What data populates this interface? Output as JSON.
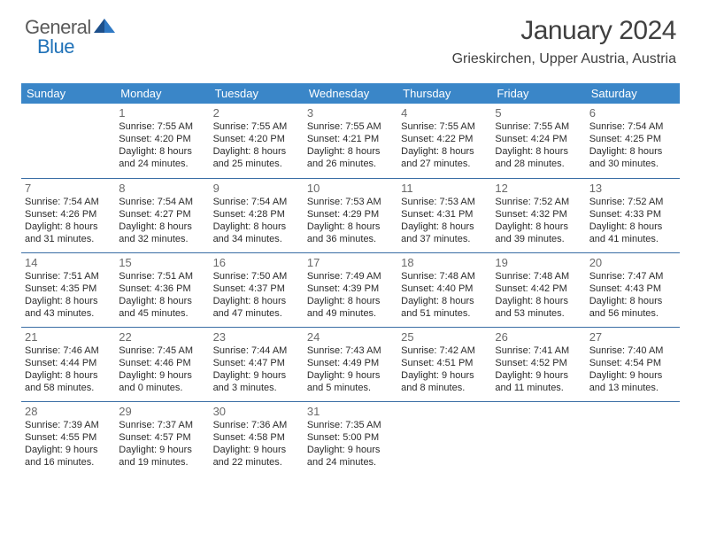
{
  "brand": {
    "line1": "General",
    "line2": "Blue",
    "text_color": "#5a5a5a",
    "accent_color": "#2072b8"
  },
  "header": {
    "title": "January 2024",
    "location": "Grieskirchen, Upper Austria, Austria"
  },
  "theme": {
    "header_bg": "#3a86c8",
    "header_fg": "#ffffff",
    "row_border": "#3a6ea5",
    "daynum_color": "#6a6a6a",
    "text_color": "#2b2b2b",
    "page_bg": "#ffffff"
  },
  "calendar": {
    "type": "table",
    "columns": [
      "Sunday",
      "Monday",
      "Tuesday",
      "Wednesday",
      "Thursday",
      "Friday",
      "Saturday"
    ],
    "first_weekday_index": 1,
    "days": [
      {
        "n": 1,
        "sunrise": "7:55 AM",
        "sunset": "4:20 PM",
        "day_h": 8,
        "day_m": 24
      },
      {
        "n": 2,
        "sunrise": "7:55 AM",
        "sunset": "4:20 PM",
        "day_h": 8,
        "day_m": 25
      },
      {
        "n": 3,
        "sunrise": "7:55 AM",
        "sunset": "4:21 PM",
        "day_h": 8,
        "day_m": 26
      },
      {
        "n": 4,
        "sunrise": "7:55 AM",
        "sunset": "4:22 PM",
        "day_h": 8,
        "day_m": 27
      },
      {
        "n": 5,
        "sunrise": "7:55 AM",
        "sunset": "4:24 PM",
        "day_h": 8,
        "day_m": 28
      },
      {
        "n": 6,
        "sunrise": "7:54 AM",
        "sunset": "4:25 PM",
        "day_h": 8,
        "day_m": 30
      },
      {
        "n": 7,
        "sunrise": "7:54 AM",
        "sunset": "4:26 PM",
        "day_h": 8,
        "day_m": 31
      },
      {
        "n": 8,
        "sunrise": "7:54 AM",
        "sunset": "4:27 PM",
        "day_h": 8,
        "day_m": 32
      },
      {
        "n": 9,
        "sunrise": "7:54 AM",
        "sunset": "4:28 PM",
        "day_h": 8,
        "day_m": 34
      },
      {
        "n": 10,
        "sunrise": "7:53 AM",
        "sunset": "4:29 PM",
        "day_h": 8,
        "day_m": 36
      },
      {
        "n": 11,
        "sunrise": "7:53 AM",
        "sunset": "4:31 PM",
        "day_h": 8,
        "day_m": 37
      },
      {
        "n": 12,
        "sunrise": "7:52 AM",
        "sunset": "4:32 PM",
        "day_h": 8,
        "day_m": 39
      },
      {
        "n": 13,
        "sunrise": "7:52 AM",
        "sunset": "4:33 PM",
        "day_h": 8,
        "day_m": 41
      },
      {
        "n": 14,
        "sunrise": "7:51 AM",
        "sunset": "4:35 PM",
        "day_h": 8,
        "day_m": 43
      },
      {
        "n": 15,
        "sunrise": "7:51 AM",
        "sunset": "4:36 PM",
        "day_h": 8,
        "day_m": 45
      },
      {
        "n": 16,
        "sunrise": "7:50 AM",
        "sunset": "4:37 PM",
        "day_h": 8,
        "day_m": 47
      },
      {
        "n": 17,
        "sunrise": "7:49 AM",
        "sunset": "4:39 PM",
        "day_h": 8,
        "day_m": 49
      },
      {
        "n": 18,
        "sunrise": "7:48 AM",
        "sunset": "4:40 PM",
        "day_h": 8,
        "day_m": 51
      },
      {
        "n": 19,
        "sunrise": "7:48 AM",
        "sunset": "4:42 PM",
        "day_h": 8,
        "day_m": 53
      },
      {
        "n": 20,
        "sunrise": "7:47 AM",
        "sunset": "4:43 PM",
        "day_h": 8,
        "day_m": 56
      },
      {
        "n": 21,
        "sunrise": "7:46 AM",
        "sunset": "4:44 PM",
        "day_h": 8,
        "day_m": 58
      },
      {
        "n": 22,
        "sunrise": "7:45 AM",
        "sunset": "4:46 PM",
        "day_h": 9,
        "day_m": 0
      },
      {
        "n": 23,
        "sunrise": "7:44 AM",
        "sunset": "4:47 PM",
        "day_h": 9,
        "day_m": 3
      },
      {
        "n": 24,
        "sunrise": "7:43 AM",
        "sunset": "4:49 PM",
        "day_h": 9,
        "day_m": 5
      },
      {
        "n": 25,
        "sunrise": "7:42 AM",
        "sunset": "4:51 PM",
        "day_h": 9,
        "day_m": 8
      },
      {
        "n": 26,
        "sunrise": "7:41 AM",
        "sunset": "4:52 PM",
        "day_h": 9,
        "day_m": 11
      },
      {
        "n": 27,
        "sunrise": "7:40 AM",
        "sunset": "4:54 PM",
        "day_h": 9,
        "day_m": 13
      },
      {
        "n": 28,
        "sunrise": "7:39 AM",
        "sunset": "4:55 PM",
        "day_h": 9,
        "day_m": 16
      },
      {
        "n": 29,
        "sunrise": "7:37 AM",
        "sunset": "4:57 PM",
        "day_h": 9,
        "day_m": 19
      },
      {
        "n": 30,
        "sunrise": "7:36 AM",
        "sunset": "4:58 PM",
        "day_h": 9,
        "day_m": 22
      },
      {
        "n": 31,
        "sunrise": "7:35 AM",
        "sunset": "5:00 PM",
        "day_h": 9,
        "day_m": 24
      }
    ],
    "labels": {
      "sunrise": "Sunrise:",
      "sunset": "Sunset:",
      "daylight": "Daylight:",
      "hours": "hours",
      "and": "and",
      "minutes": "minutes."
    }
  }
}
